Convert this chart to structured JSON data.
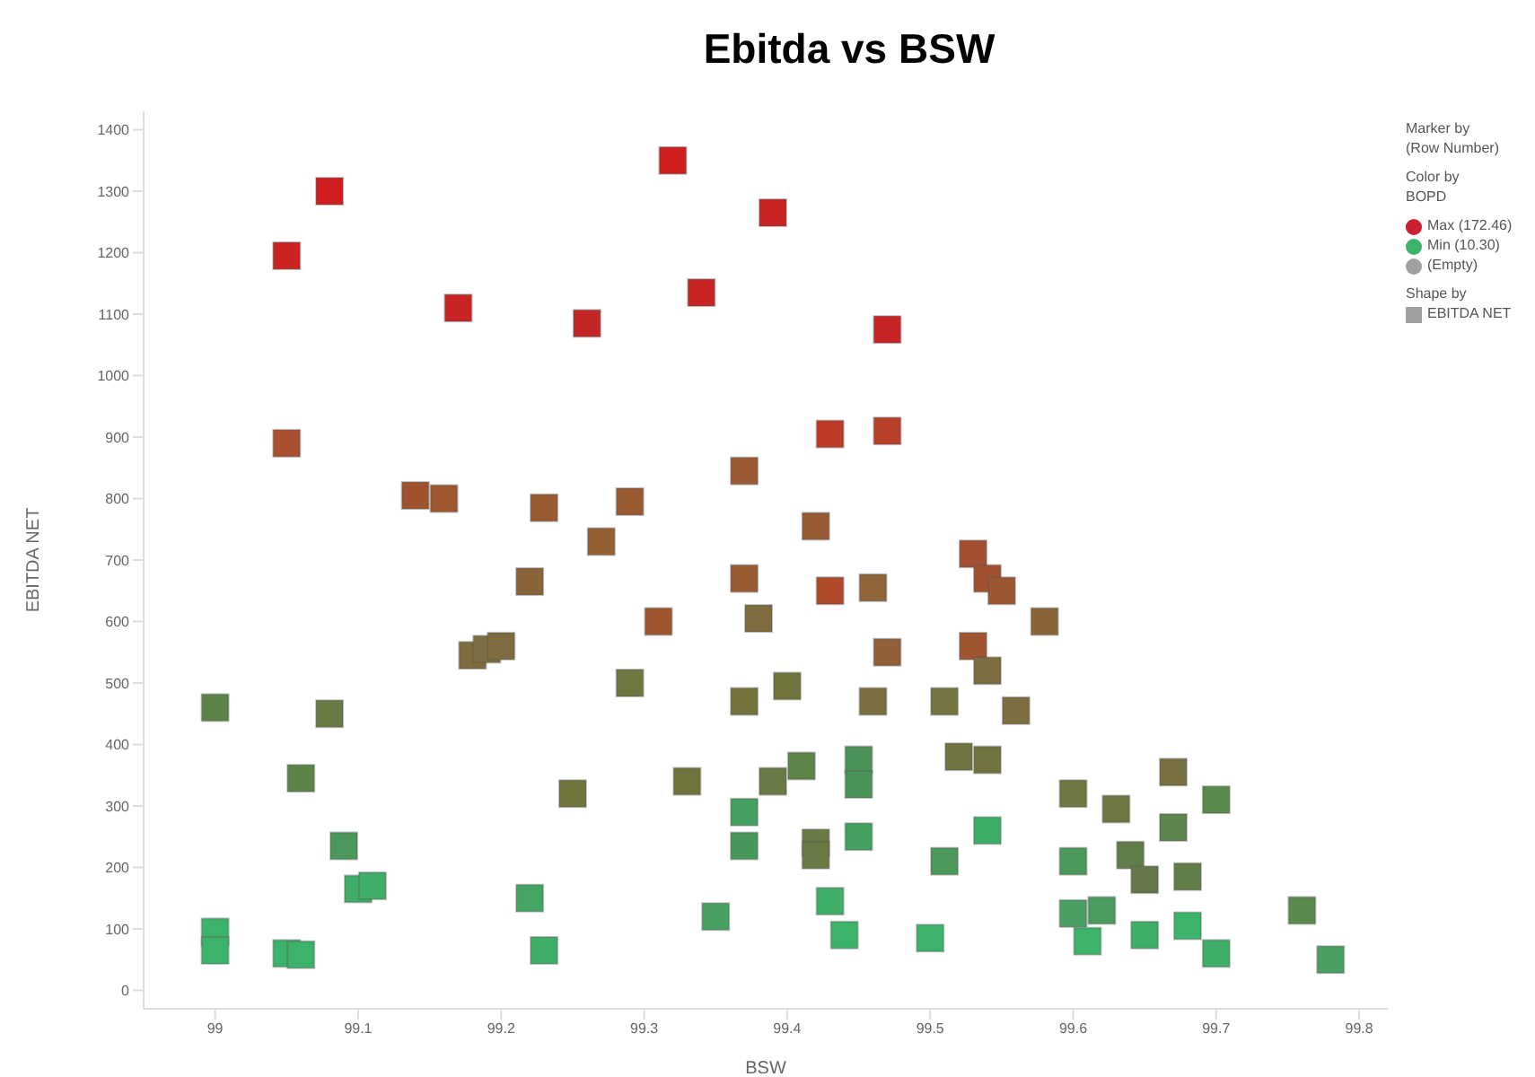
{
  "chart_data": {
    "type": "scatter",
    "title": "Ebitda vs BSW",
    "xlabel": "BSW",
    "ylabel": "EBITDA NET",
    "marker": "square",
    "grid": false,
    "xlim": [
      98.95,
      99.82
    ],
    "xticks": [
      99,
      99.1,
      99.2,
      99.3,
      99.4,
      99.5,
      99.6,
      99.7,
      99.8
    ],
    "ylim": [
      -30,
      1430
    ],
    "yticks": [
      0,
      100,
      200,
      300,
      400,
      500,
      600,
      700,
      800,
      900,
      1000,
      1100,
      1200,
      1300,
      1400
    ],
    "annotations": [
      "Marker by",
      "(Row Number)",
      "Color by",
      "BOPD",
      "Max (172.46)",
      "Min (10.30)",
      "(Empty)",
      "Shape by",
      "EBITDA NET"
    ],
    "series": [
      {
        "x": [
          99.05,
          99.08,
          99.17,
          99.26,
          99.32,
          99.34,
          99.39,
          99.47,
          99.43,
          99.47,
          99.05,
          99.14,
          99.16,
          99.23,
          99.29,
          99.37,
          99.42,
          99.27,
          99.22,
          99.37,
          99.43,
          99.46,
          99.53,
          99.54,
          99.55,
          99.58,
          99.31,
          99.38,
          99.47,
          99.53,
          99.18,
          99.19,
          99.2,
          99.54,
          99.29,
          99.37,
          99.4,
          99.46,
          99.51,
          99.56,
          99,
          99.08,
          99.06,
          99.25,
          99.33,
          99.39,
          99.41,
          99.45,
          99.45,
          99.52,
          99.54,
          99.6,
          99.63,
          99.67,
          99.7,
          99.37,
          99.37,
          99.42,
          99.42,
          99.45,
          99.54,
          99.51,
          99.6,
          99.64,
          99.65,
          99.67,
          99.68,
          99.09,
          99.1,
          99.11,
          99.22,
          99.23,
          99,
          99,
          99.05,
          99.06,
          99.35,
          99.43,
          99.44,
          99.5,
          99.6,
          99.62,
          99.61,
          99.65,
          99.68,
          99.7,
          99.76,
          99.78
        ],
        "values": [
          1195,
          1300,
          1110,
          1085,
          1350,
          1135,
          1265,
          1075,
          905,
          910,
          890,
          805,
          800,
          785,
          795,
          845,
          755,
          730,
          665,
          670,
          650,
          655,
          710,
          670,
          650,
          600,
          600,
          605,
          550,
          560,
          545,
          555,
          560,
          520,
          500,
          470,
          495,
          470,
          470,
          455,
          460,
          450,
          345,
          320,
          340,
          340,
          365,
          375,
          335,
          380,
          375,
          320,
          295,
          355,
          310,
          290,
          235,
          240,
          220,
          250,
          260,
          210,
          210,
          220,
          180,
          265,
          185,
          235,
          165,
          170,
          150,
          65,
          95,
          65,
          60,
          58,
          120,
          145,
          90,
          85,
          125,
          130,
          80,
          90,
          105,
          60,
          130,
          50
        ],
        "colors": [
          "#cc2222",
          "#d01e1e",
          "#c82424",
          "#c42626",
          "#d01e1e",
          "#c82424",
          "#c82424",
          "#c62424",
          "#bc3a26",
          "#b84028",
          "#a85030",
          "#a0522e",
          "#a05630",
          "#9a5a32",
          "#9a5a32",
          "#9c5a34",
          "#985c34",
          "#946034",
          "#8a6438",
          "#9a5a32",
          "#b04a2a",
          "#8e6438",
          "#a45030",
          "#a05230",
          "#9c5632",
          "#8a6438",
          "#a05430",
          "#7e6c3e",
          "#926038",
          "#a05430",
          "#7e6c3e",
          "#7c6e40",
          "#7e6c3e",
          "#7c6e40",
          "#707640",
          "#76723e",
          "#72743e",
          "#7a6e3e",
          "#747440",
          "#7c6e40",
          "#5c8448",
          "#6a7a44",
          "#5c8448",
          "#72743e",
          "#72743e",
          "#6a7a44",
          "#5e8448",
          "#4a9258",
          "#4a9258",
          "#727440",
          "#727440",
          "#6e7642",
          "#6e7642",
          "#787040",
          "#5a8a4c",
          "#44a060",
          "#48985c",
          "#6a7a44",
          "#6a7a44",
          "#44a060",
          "#3cac66",
          "#4a985a",
          "#4a985a",
          "#627e48",
          "#66784a",
          "#5c844c",
          "#627e48",
          "#4c985a",
          "#3fae68",
          "#3fae68",
          "#44a662",
          "#3fae68",
          "#3cb36a",
          "#3cb36a",
          "#3cb36a",
          "#3cb36a",
          "#48a062",
          "#3fae68",
          "#3cb36a",
          "#3cb36a",
          "#48a062",
          "#4a9c5e",
          "#3cb36a",
          "#3fae68",
          "#3cb36a",
          "#3fae68",
          "#5a8a4c",
          "#48a062"
        ]
      }
    ]
  }
}
